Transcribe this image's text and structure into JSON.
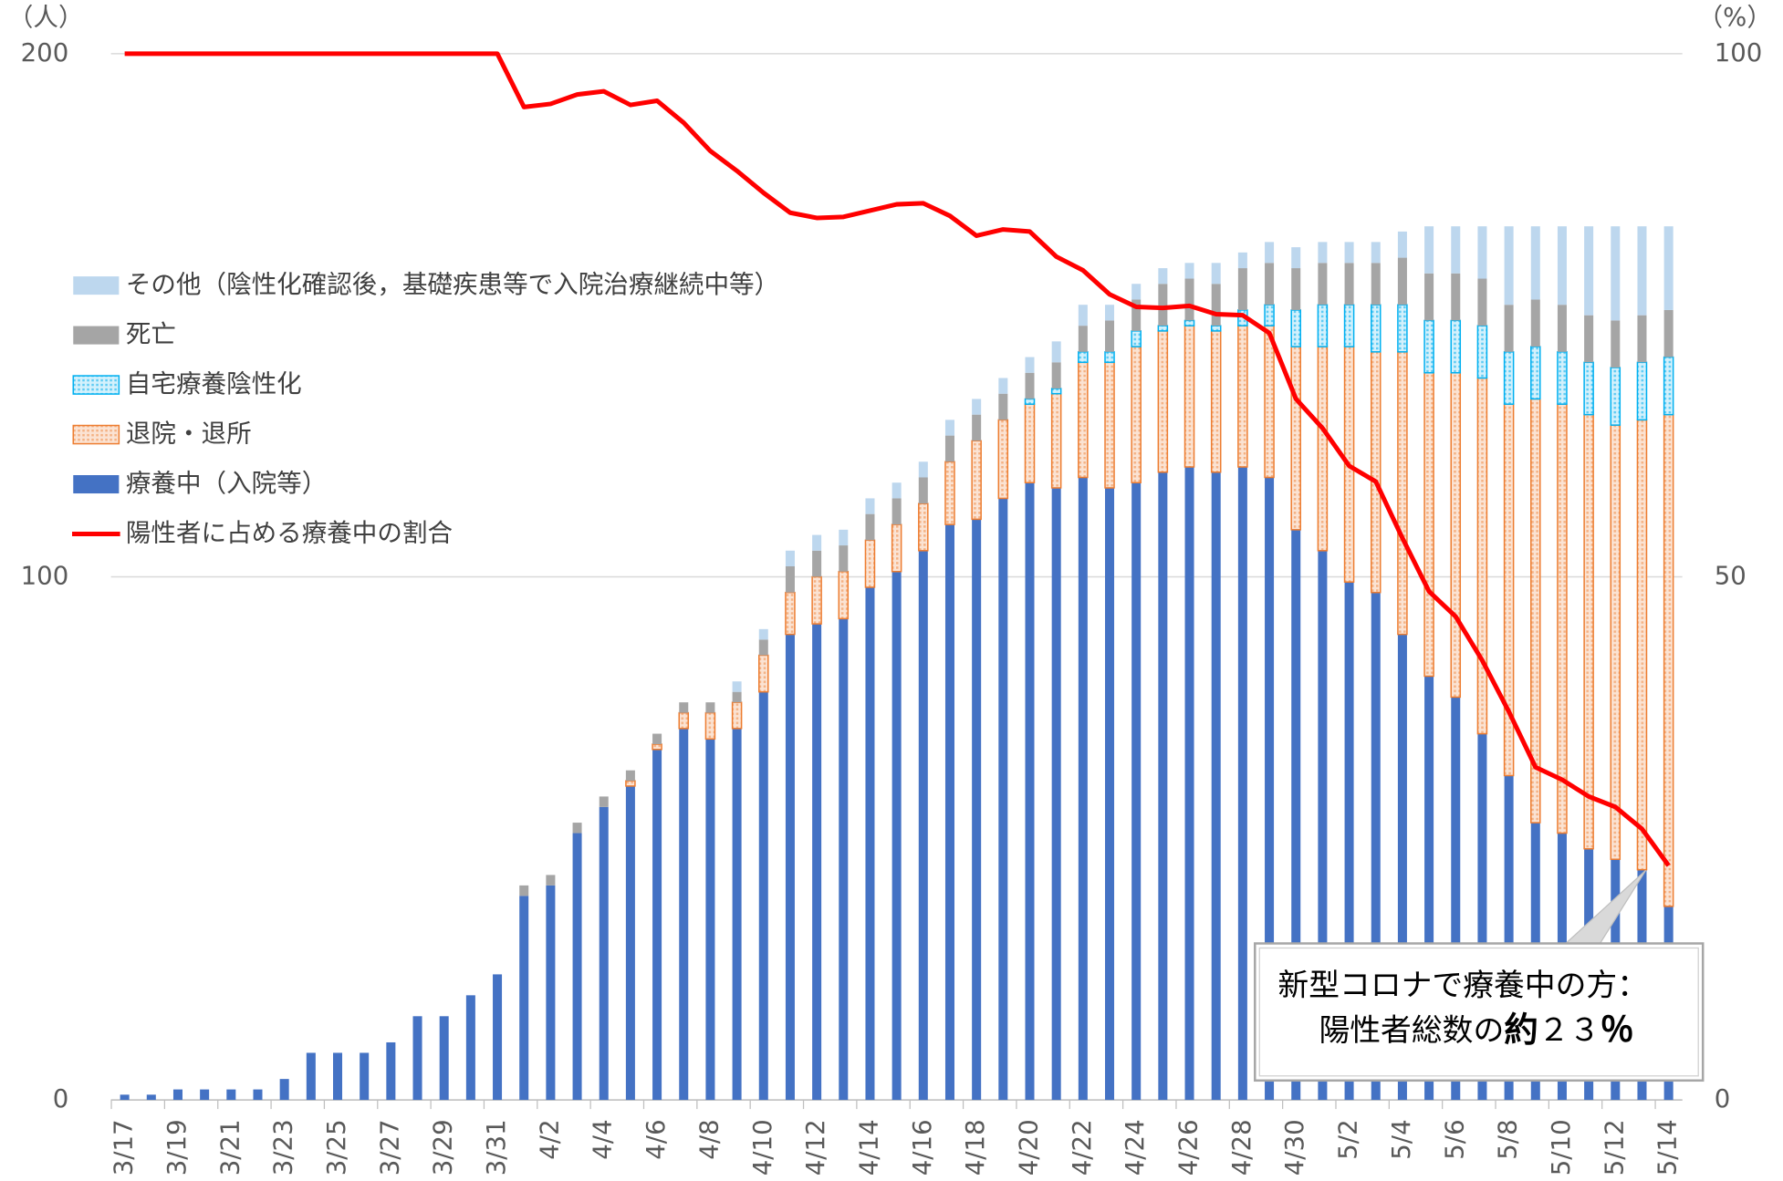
{
  "chart_data": {
    "type": "stacked-bar-line",
    "y_unit": "（人）",
    "y2_unit": "（%）",
    "categories": [
      "3/17",
      null,
      "3/19",
      null,
      "3/21",
      null,
      "3/23",
      null,
      "3/25",
      null,
      "3/27",
      null,
      "3/29",
      null,
      "3/31",
      null,
      "4/2",
      null,
      "4/4",
      null,
      "4/6",
      null,
      "4/8",
      null,
      "4/10",
      null,
      "4/12",
      null,
      "4/14",
      null,
      "4/16",
      null,
      "4/18",
      null,
      "4/20",
      null,
      "4/22",
      null,
      "4/24",
      null,
      "4/26",
      null,
      "4/28",
      null,
      "4/30",
      null,
      "5/2",
      null,
      "5/4",
      null,
      "5/6",
      null,
      "5/8",
      null,
      "5/10",
      null,
      "5/12",
      null,
      "5/14"
    ],
    "ylim": [
      0,
      200
    ],
    "yticks": [
      0,
      100,
      200
    ],
    "y2lim": [
      0,
      100
    ],
    "y2ticks": [
      0,
      50,
      100
    ],
    "grid": true,
    "series": [
      {
        "name": "療養中（入院等）",
        "color": "#4472c4",
        "values": [
          1,
          1,
          2,
          2,
          2,
          2,
          4,
          9,
          9,
          9,
          11,
          16,
          16,
          20,
          24,
          39,
          41,
          51,
          56,
          60,
          67,
          71,
          69,
          71,
          78,
          89,
          91,
          92,
          98,
          101,
          105,
          110,
          111,
          115,
          118,
          117,
          119,
          117,
          118,
          120,
          121,
          120,
          121,
          119,
          109,
          105,
          99,
          97,
          89,
          81,
          77,
          70,
          62,
          53,
          51,
          48,
          46,
          44,
          37
        ]
      },
      {
        "name": "退院・退所",
        "color": "#ed7d31",
        "values": [
          0,
          0,
          0,
          0,
          0,
          0,
          0,
          0,
          0,
          0,
          0,
          0,
          0,
          0,
          0,
          0,
          0,
          0,
          0,
          1,
          1,
          3,
          5,
          5,
          7,
          8,
          9,
          9,
          9,
          9,
          9,
          12,
          15,
          15,
          15,
          18,
          22,
          24,
          26,
          27,
          27,
          27,
          27,
          29,
          35,
          39,
          45,
          46,
          54,
          58,
          62,
          68,
          71,
          81,
          82,
          83,
          83,
          86,
          94
        ]
      },
      {
        "name": "自宅療養陰性化",
        "color": "#00b0f0",
        "values": [
          0,
          0,
          0,
          0,
          0,
          0,
          0,
          0,
          0,
          0,
          0,
          0,
          0,
          0,
          0,
          0,
          0,
          0,
          0,
          0,
          0,
          0,
          0,
          0,
          0,
          0,
          0,
          0,
          0,
          0,
          0,
          0,
          0,
          0,
          1,
          1,
          2,
          2,
          3,
          1,
          1,
          1,
          3,
          4,
          7,
          8,
          8,
          9,
          9,
          10,
          10,
          10,
          10,
          10,
          10,
          10,
          11,
          11,
          11
        ]
      },
      {
        "name": "死亡",
        "color": "#a5a5a5",
        "values": [
          0,
          0,
          0,
          0,
          0,
          0,
          0,
          0,
          0,
          0,
          0,
          0,
          0,
          0,
          0,
          2,
          2,
          2,
          2,
          2,
          2,
          2,
          2,
          2,
          3,
          5,
          5,
          5,
          5,
          5,
          5,
          5,
          5,
          5,
          5,
          5,
          5,
          6,
          6,
          8,
          8,
          8,
          8,
          8,
          8,
          8,
          8,
          8,
          9,
          9,
          9,
          9,
          9,
          9,
          9,
          9,
          9,
          9,
          9
        ]
      },
      {
        "name": "その他（陰性化確認後，基礎疾患等で入院治療継続中等）",
        "color": "#bdd7ee",
        "values": [
          0,
          0,
          0,
          0,
          0,
          0,
          0,
          0,
          0,
          0,
          0,
          0,
          0,
          0,
          0,
          0,
          0,
          0,
          0,
          0,
          0,
          0,
          0,
          2,
          2,
          3,
          3,
          3,
          3,
          3,
          3,
          3,
          3,
          3,
          3,
          4,
          4,
          3,
          3,
          3,
          3,
          4,
          3,
          4,
          4,
          4,
          4,
          4,
          5,
          9,
          9,
          10,
          15,
          14,
          15,
          17,
          18,
          17,
          16
        ]
      },
      {
        "name": "陽性者に占める療養中の割合",
        "color": "#ff0000",
        "axis": "y2",
        "values": [
          100,
          100,
          100,
          100,
          100,
          100,
          100,
          100,
          100,
          100,
          100,
          100,
          100,
          100,
          100,
          94.9,
          95.2,
          96.1,
          96.4,
          95.1,
          95.5,
          93.4,
          90.7,
          88.8,
          86.7,
          84.8,
          84.3,
          84.4,
          85.0,
          85.6,
          85.7,
          84.5,
          82.6,
          83.2,
          83.0,
          80.6,
          79.3,
          77.0,
          75.8,
          75.7,
          75.9,
          75.1,
          75.0,
          73.3,
          67.0,
          64.2,
          60.6,
          59.1,
          53.7,
          48.6,
          46.2,
          42.0,
          37.1,
          31.8,
          30.6,
          29.0,
          28.0,
          25.9,
          22.4
        ]
      }
    ],
    "annotation": {
      "line1": "新型コロナで療養中の方：",
      "line2": "陽性者総数の",
      "emphasis": "約",
      "figure": "２３",
      "unit": "％"
    }
  }
}
